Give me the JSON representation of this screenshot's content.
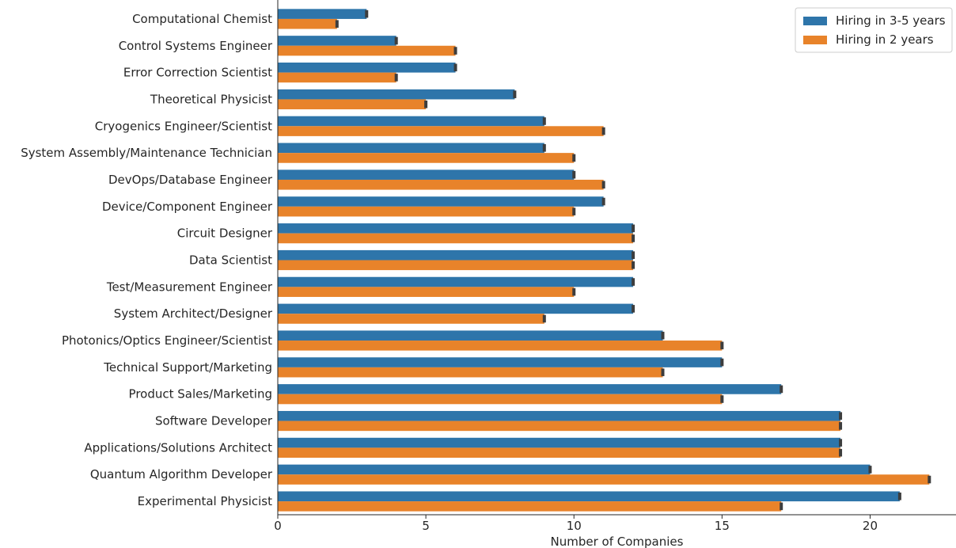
{
  "chart_data": {
    "type": "bar",
    "orientation": "horizontal",
    "categories": [
      "Computational Chemist",
      "Control Systems Engineer",
      "Error Correction Scientist",
      "Theoretical Physicist",
      "Cryogenics Engineer/Scientist",
      "System Assembly/Maintenance Technician",
      "DevOps/Database Engineer",
      "Device/Component Engineer",
      "Circuit Designer",
      "Data Scientist",
      "Test/Measurement Engineer",
      "System Architect/Designer",
      "Photonics/Optics Engineer/Scientist",
      "Technical Support/Marketing",
      "Product Sales/Marketing",
      "Software Developer",
      "Applications/Solutions Architect",
      "Quantum Algorithm Developer",
      "Experimental Physicist"
    ],
    "series": [
      {
        "name": "Hiring in 3-5 years",
        "color": "#2e75aa",
        "values": [
          3,
          4,
          6,
          8,
          9,
          9,
          10,
          11,
          12,
          12,
          12,
          12,
          13,
          15,
          17,
          19,
          19,
          20,
          21
        ]
      },
      {
        "name": "Hiring in 2 years",
        "color": "#e8832a",
        "values": [
          2,
          6,
          4,
          5,
          11,
          10,
          11,
          10,
          12,
          12,
          10,
          9,
          15,
          13,
          15,
          19,
          19,
          22,
          17
        ]
      }
    ],
    "xlabel": "Number of Companies",
    "ylabel": "",
    "xlim": [
      0,
      22.9
    ],
    "xticks": [
      0,
      5,
      10,
      15,
      20
    ],
    "grid": false,
    "legend_position": "top-right"
  }
}
